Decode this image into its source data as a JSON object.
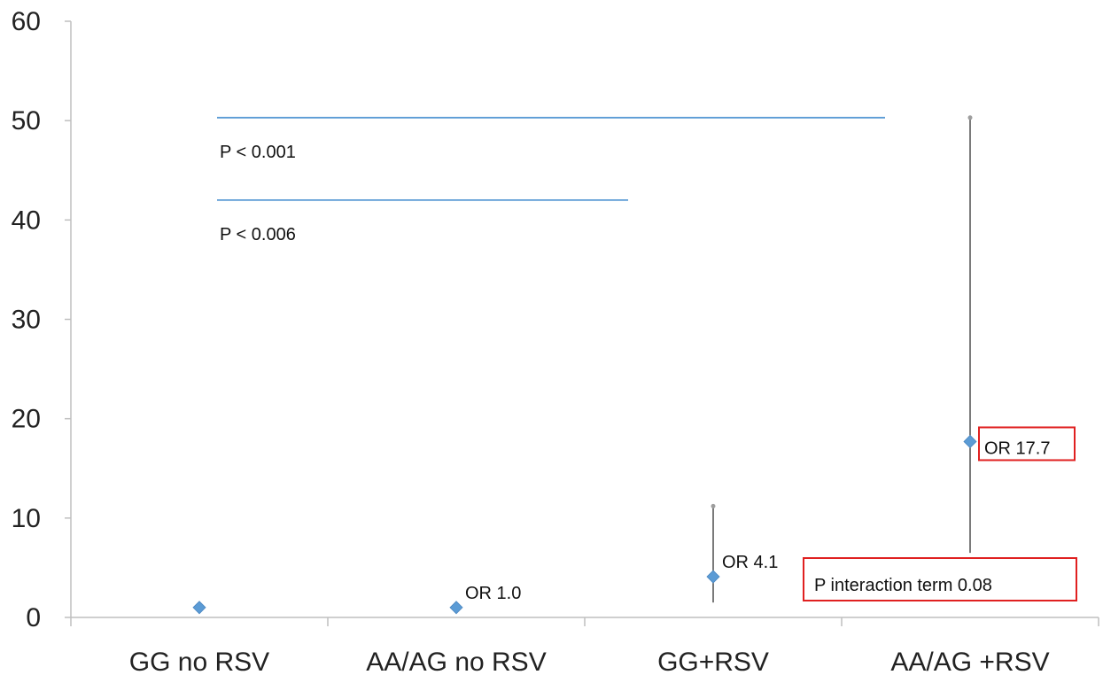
{
  "chart_data": {
    "type": "scatter",
    "title": "",
    "xlabel": "",
    "ylabel": "",
    "categories": [
      "GG no RSV",
      "AA/AG no RSV",
      "GG+RSV",
      "AA/AG +RSV"
    ],
    "ylim": [
      0,
      60
    ],
    "yticks": [
      "0",
      "10",
      "20",
      "30",
      "40",
      "50",
      "60"
    ],
    "grid": false,
    "legend": "none",
    "marker_color": "#5B9BD5",
    "series": [
      {
        "values": [
          1.0,
          1.0,
          4.1,
          17.7
        ],
        "ci_low": [
          null,
          null,
          1.5,
          6.5
        ],
        "ci_high": [
          null,
          null,
          11.2,
          50.3
        ]
      }
    ],
    "point_labels": [
      "",
      "OR 1.0",
      "OR 4.1",
      "OR 17.7"
    ],
    "comparisons": [
      {
        "label": "P < 0.001",
        "from_category": 0,
        "to_category": 3,
        "y": 50.3,
        "color": "#5B9BD5"
      },
      {
        "label": "P < 0.006",
        "from_category": 0,
        "to_category": 2,
        "y": 42.0,
        "color": "#5B9BD5"
      }
    ],
    "annotations": [
      {
        "text": "P interaction term 0.08",
        "box_color": "#E02020"
      }
    ]
  }
}
